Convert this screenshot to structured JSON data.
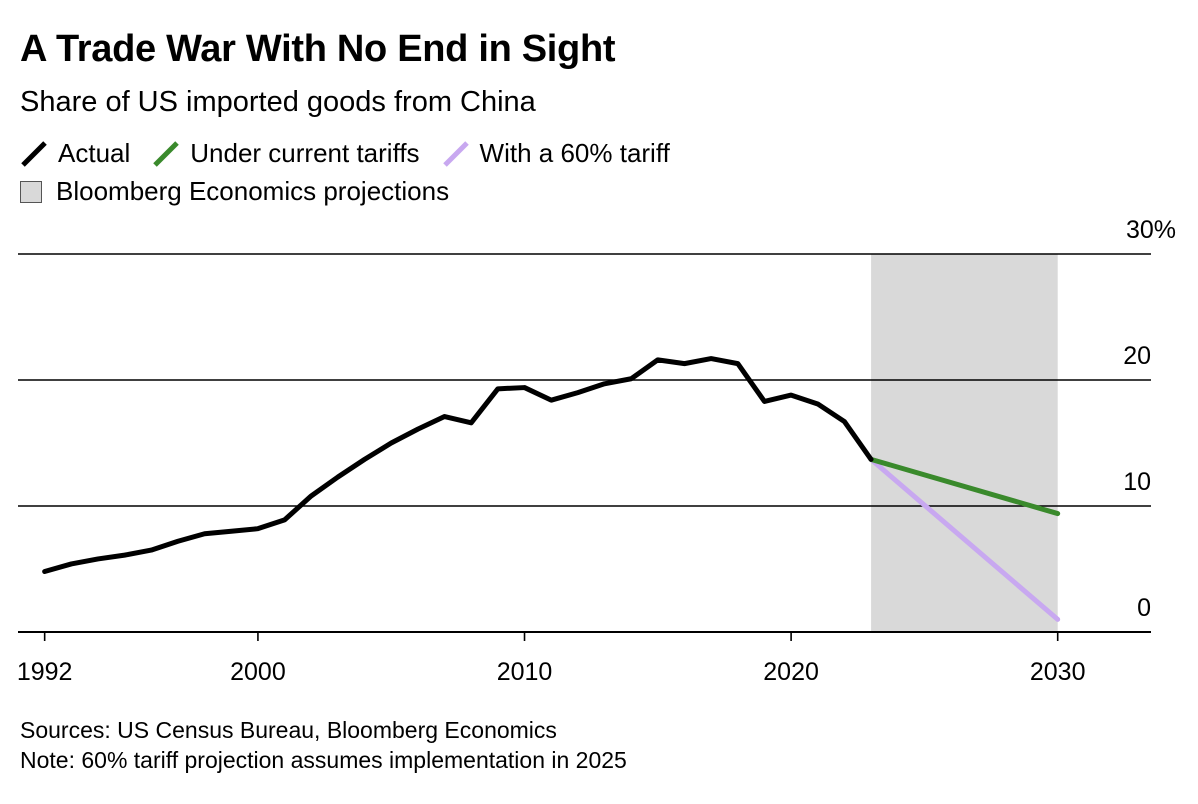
{
  "title": "A Trade War With No End in Sight",
  "subtitle": "Share of US imported goods from China",
  "legend": {
    "actual": "Actual",
    "current": "Under current tariffs",
    "tariff60": "With a 60% tariff",
    "projection": "Bloomberg Economics projections"
  },
  "footer": {
    "sources": "Sources: US Census Bureau, Bloomberg Economics",
    "note": "Note: 60% tariff projection assumes implementation in 2025"
  },
  "colors": {
    "actual": "#000000",
    "current": "#3a8a2c",
    "tariff60": "#c8a8f0",
    "projection_band": "#d9d9d9",
    "grid": "#000000"
  },
  "chart_data": {
    "type": "line",
    "xlim": [
      1991,
      2033.5
    ],
    "ylim": [
      0,
      30
    ],
    "x_ticks": [
      1992,
      2000,
      2010,
      2020,
      2030
    ],
    "x_tick_labels": [
      "1992",
      "2000",
      "2010",
      "2020",
      "2030"
    ],
    "y_ticks": [
      0,
      10,
      20,
      30
    ],
    "y_tick_labels": [
      "0",
      "10",
      "20",
      "30%"
    ],
    "grid": true,
    "projection_band": [
      2023,
      2030
    ],
    "series": [
      {
        "name": "Actual",
        "key": "actual",
        "x": [
          1992,
          1993,
          1994,
          1995,
          1996,
          1997,
          1998,
          1999,
          2000,
          2001,
          2002,
          2003,
          2004,
          2005,
          2006,
          2007,
          2008,
          2009,
          2010,
          2011,
          2012,
          2013,
          2014,
          2015,
          2016,
          2017,
          2018,
          2019,
          2020,
          2021,
          2022,
          2023
        ],
        "values": [
          4.8,
          5.4,
          5.8,
          6.1,
          6.5,
          7.2,
          7.8,
          8.0,
          8.2,
          8.9,
          10.8,
          12.3,
          13.7,
          15.0,
          16.1,
          17.1,
          16.6,
          19.3,
          19.4,
          18.4,
          19.0,
          19.7,
          20.1,
          21.6,
          21.3,
          21.7,
          21.3,
          18.3,
          18.8,
          18.1,
          16.7,
          13.7
        ]
      },
      {
        "name": "Under current tariffs",
        "key": "current",
        "x": [
          2023,
          2030
        ],
        "values": [
          13.7,
          9.4
        ]
      },
      {
        "name": "With a 60% tariff",
        "key": "tariff60",
        "x": [
          2023,
          2030
        ],
        "values": [
          13.7,
          1.0
        ]
      }
    ]
  }
}
